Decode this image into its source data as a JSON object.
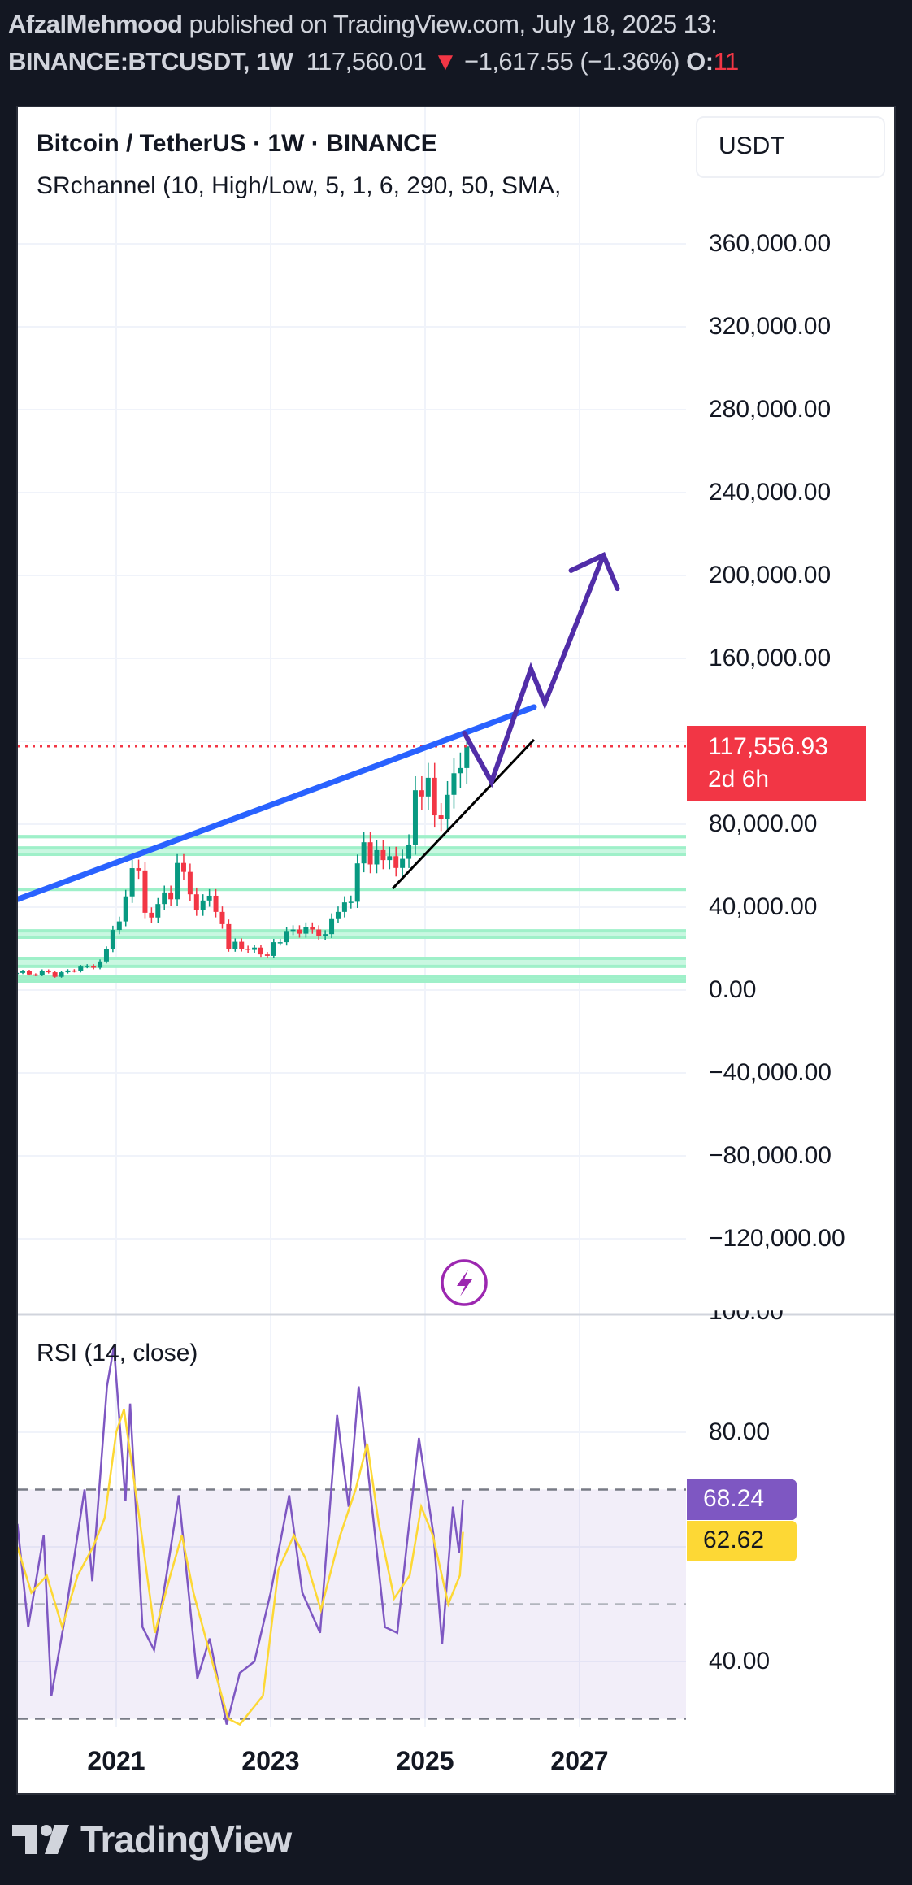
{
  "header": {
    "author": "AfzalMehmood",
    "published": " published on TradingView.com, July 18, 2025 13:",
    "symbol": "BINANCE:BTCUSDT, 1W",
    "last": "117,560.01",
    "change": "−1,617.55 (−1.36%)",
    "open_label": "O:",
    "open_value": "11"
  },
  "legend": {
    "title": "Bitcoin / TetherUS · 1W · BINANCE",
    "indicator": "SRchannel (10, High/Low, 5, 1, 6, 290, 50, SMA,"
  },
  "currency_button": "USDT",
  "price_axis": [
    "360,000.00",
    "320,000.00",
    "280,000.00",
    "240,000.00",
    "200,000.00",
    "160,000.00",
    "80,000.00",
    "40,000.00",
    "0.00",
    "−40,000.00",
    "−80,000.00",
    "−120,000.00"
  ],
  "price_tag": {
    "price": "117,556.93",
    "countdown": "2d 6h"
  },
  "rsi": {
    "title": "RSI (14, close)",
    "axis": [
      "100.00",
      "80.00",
      "40.00"
    ],
    "value": "68.24",
    "ma_value": "62.62"
  },
  "time_axis": [
    "2021",
    "2023",
    "2025",
    "2027"
  ],
  "brand": "TradingView",
  "colors": {
    "up": "#089981",
    "down": "#f23645",
    "trendline": "#2962ff",
    "projection": "#512da8",
    "support": "#000000",
    "sr_band": "#9ff0c9",
    "rsi": "#7e57c2",
    "rsi_ma": "#fdd835",
    "bg": "#131722"
  },
  "icons": {
    "alert": "lightning-icon",
    "arrow": "down-triangle-icon"
  },
  "chart_data": [
    {
      "type": "candlestick",
      "interval_note": "monthly approximation of weekly candles",
      "price_axis_values": [
        360000,
        320000,
        280000,
        240000,
        200000,
        160000,
        80000,
        40000,
        0,
        -40000,
        -80000,
        -120000
      ],
      "x_ticks": [
        2021,
        2023,
        2025,
        2027
      ],
      "last_price": 117556.93,
      "closes": [
        [
          "2019-09",
          8300
        ],
        [
          "2019-10",
          9150
        ],
        [
          "2019-11",
          7550
        ],
        [
          "2019-12",
          7200
        ],
        [
          "2020-01",
          9350
        ],
        [
          "2020-02",
          8600
        ],
        [
          "2020-03",
          6400
        ],
        [
          "2020-04",
          8600
        ],
        [
          "2020-05",
          9450
        ],
        [
          "2020-06",
          9140
        ],
        [
          "2020-07",
          11330
        ],
        [
          "2020-08",
          11650
        ],
        [
          "2020-09",
          10780
        ],
        [
          "2020-10",
          13800
        ],
        [
          "2020-11",
          19700
        ],
        [
          "2020-12",
          29000
        ],
        [
          "2021-01",
          33100
        ],
        [
          "2021-02",
          45200
        ],
        [
          "2021-03",
          58800
        ],
        [
          "2021-04",
          57700
        ],
        [
          "2021-05",
          37300
        ],
        [
          "2021-06",
          35000
        ],
        [
          "2021-07",
          41500
        ],
        [
          "2021-08",
          47100
        ],
        [
          "2021-09",
          43800
        ],
        [
          "2021-10",
          61300
        ],
        [
          "2021-11",
          57000
        ],
        [
          "2021-12",
          46200
        ],
        [
          "2022-01",
          38500
        ],
        [
          "2022-02",
          43200
        ],
        [
          "2022-03",
          45500
        ],
        [
          "2022-04",
          37700
        ],
        [
          "2022-05",
          31800
        ],
        [
          "2022-06",
          19900
        ],
        [
          "2022-07",
          23300
        ],
        [
          "2022-08",
          20000
        ],
        [
          "2022-09",
          19400
        ],
        [
          "2022-10",
          20500
        ],
        [
          "2022-11",
          17200
        ],
        [
          "2022-12",
          16500
        ],
        [
          "2023-01",
          23100
        ],
        [
          "2023-02",
          23100
        ],
        [
          "2023-03",
          28500
        ],
        [
          "2023-04",
          29200
        ],
        [
          "2023-05",
          27200
        ],
        [
          "2023-06",
          30500
        ],
        [
          "2023-07",
          29200
        ],
        [
          "2023-08",
          25900
        ],
        [
          "2023-09",
          27000
        ],
        [
          "2023-10",
          34600
        ],
        [
          "2023-11",
          37700
        ],
        [
          "2023-12",
          42300
        ],
        [
          "2024-01",
          42600
        ],
        [
          "2024-02",
          61100
        ],
        [
          "2024-03",
          71300
        ],
        [
          "2024-04",
          60600
        ],
        [
          "2024-05",
          67500
        ],
        [
          "2024-06",
          62700
        ],
        [
          "2024-07",
          64600
        ],
        [
          "2024-08",
          58900
        ],
        [
          "2024-09",
          63300
        ],
        [
          "2024-10",
          70200
        ],
        [
          "2024-11",
          96400
        ],
        [
          "2024-12",
          93400
        ],
        [
          "2025-01",
          102400
        ],
        [
          "2025-02",
          84300
        ],
        [
          "2025-03",
          82500
        ],
        [
          "2025-04",
          94200
        ],
        [
          "2025-05",
          104600
        ],
        [
          "2025-06",
          107100
        ],
        [
          "2025-07",
          117560
        ]
      ],
      "sr_levels": [
        [
          74000,
          74000
        ],
        [
          65500,
          68600
        ],
        [
          48600,
          48600
        ],
        [
          25500,
          28600
        ],
        [
          11400,
          15300
        ],
        [
          4300,
          6300
        ]
      ],
      "drawings": {
        "resistance_line": [
          [
            2019.73,
            43900
          ],
          [
            2026.41,
            136500
          ]
        ],
        "support_line": [
          [
            2024.58,
            49000
          ],
          [
            2026.41,
            120800
          ]
        ],
        "projection_path": [
          [
            2025.51,
            123900
          ],
          [
            2025.86,
            100400
          ],
          [
            2026.37,
            154900
          ],
          [
            2026.55,
            138400
          ],
          [
            2027.31,
            209800
          ]
        ],
        "arrow_head": [
          [
            2026.89,
            202400
          ],
          [
            2027.31,
            209800
          ],
          [
            2027.49,
            193700
          ]
        ]
      }
    },
    {
      "type": "line",
      "title": "RSI (14, close)",
      "ylim": [
        30,
        100
      ],
      "bands": [
        30,
        50,
        70
      ],
      "series": [
        {
          "name": "RSI",
          "points": [
            [
              2019.72,
              64
            ],
            [
              2019.86,
              46
            ],
            [
              2020.06,
              62
            ],
            [
              2020.16,
              34
            ],
            [
              2020.34,
              48
            ],
            [
              2020.59,
              70
            ],
            [
              2020.69,
              54
            ],
            [
              2020.88,
              88
            ],
            [
              2020.97,
              95
            ],
            [
              2021.12,
              68
            ],
            [
              2021.18,
              85
            ],
            [
              2021.34,
              46
            ],
            [
              2021.49,
              42
            ],
            [
              2021.65,
              55
            ],
            [
              2021.81,
              69
            ],
            [
              2022.05,
              37
            ],
            [
              2022.21,
              44
            ],
            [
              2022.43,
              29
            ],
            [
              2022.6,
              38
            ],
            [
              2022.79,
              40
            ],
            [
              2023.0,
              52
            ],
            [
              2023.24,
              69
            ],
            [
              2023.41,
              52
            ],
            [
              2023.64,
              45
            ],
            [
              2023.86,
              83
            ],
            [
              2024.01,
              67
            ],
            [
              2024.14,
              88
            ],
            [
              2024.32,
              66
            ],
            [
              2024.48,
              46
            ],
            [
              2024.64,
              45
            ],
            [
              2024.76,
              60
            ],
            [
              2024.92,
              79
            ],
            [
              2025.11,
              62
            ],
            [
              2025.22,
              43
            ],
            [
              2025.36,
              67
            ],
            [
              2025.44,
              59
            ],
            [
              2025.49,
              68.24
            ]
          ]
        },
        {
          "name": "RSI-based MA",
          "points": [
            [
              2019.72,
              60
            ],
            [
              2019.9,
              52
            ],
            [
              2020.1,
              55
            ],
            [
              2020.3,
              46
            ],
            [
              2020.5,
              55
            ],
            [
              2020.7,
              60
            ],
            [
              2020.85,
              65
            ],
            [
              2021.0,
              80
            ],
            [
              2021.1,
              84
            ],
            [
              2021.3,
              65
            ],
            [
              2021.5,
              45
            ],
            [
              2021.7,
              55
            ],
            [
              2021.85,
              62
            ],
            [
              2022.0,
              52
            ],
            [
              2022.2,
              42
            ],
            [
              2022.45,
              30
            ],
            [
              2022.6,
              29
            ],
            [
              2022.9,
              34
            ],
            [
              2023.1,
              56
            ],
            [
              2023.3,
              62
            ],
            [
              2023.45,
              58
            ],
            [
              2023.65,
              49
            ],
            [
              2023.9,
              62
            ],
            [
              2024.1,
              70
            ],
            [
              2024.25,
              78
            ],
            [
              2024.4,
              64
            ],
            [
              2024.6,
              51
            ],
            [
              2024.8,
              55
            ],
            [
              2024.95,
              67
            ],
            [
              2025.1,
              62
            ],
            [
              2025.3,
              50
            ],
            [
              2025.45,
              55
            ],
            [
              2025.49,
              62.62
            ]
          ]
        }
      ]
    }
  ]
}
